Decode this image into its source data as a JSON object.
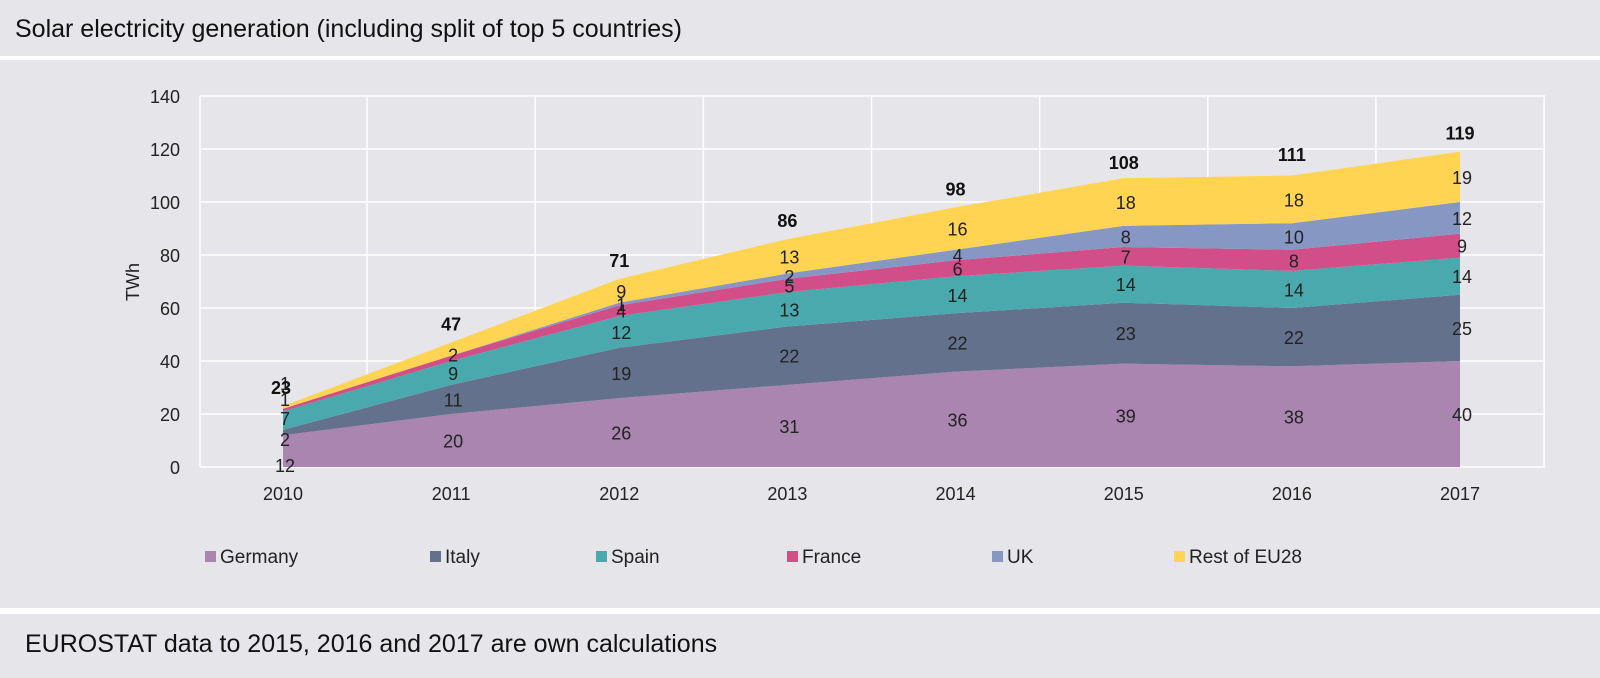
{
  "header": {
    "title": "Solar electricity generation (including split of top 5 countries)"
  },
  "footer": {
    "note": "EUROSTAT data to 2015, 2016 and 2017 are own calculations"
  },
  "chart_data": {
    "type": "area",
    "stacked": true,
    "x": [
      "2010",
      "2011",
      "2012",
      "2013",
      "2014",
      "2015",
      "2016",
      "2017"
    ],
    "ylabel": "TWh",
    "ylim": [
      0,
      140
    ],
    "yticks": [
      0,
      20,
      40,
      60,
      80,
      100,
      120,
      140
    ],
    "grid": true,
    "legend_position": "bottom",
    "series": [
      {
        "name": "Germany",
        "color": "#a985af",
        "values": [
          12,
          20,
          26,
          31,
          36,
          39,
          38,
          40
        ]
      },
      {
        "name": "Italy",
        "color": "#63718d",
        "values": [
          2,
          11,
          19,
          22,
          22,
          23,
          22,
          25
        ]
      },
      {
        "name": "Spain",
        "color": "#4aa9ad",
        "values": [
          7,
          9,
          12,
          13,
          14,
          14,
          14,
          14
        ]
      },
      {
        "name": "France",
        "color": "#d24e89",
        "values": [
          1,
          2,
          4,
          5,
          6,
          7,
          8,
          9
        ]
      },
      {
        "name": "UK",
        "color": "#8797c3",
        "values": [
          0,
          0,
          1,
          2,
          4,
          8,
          10,
          12
        ]
      },
      {
        "name": "Rest of EU28",
        "color": "#ffd452",
        "values": [
          1,
          5,
          9,
          13,
          16,
          18,
          18,
          19
        ]
      }
    ],
    "labels": [
      [
        "12",
        "20",
        "26",
        "31",
        "36",
        "39",
        "38",
        "40"
      ],
      [
        "2",
        "11",
        "19",
        "22",
        "22",
        "23",
        "22",
        "25"
      ],
      [
        "7",
        "9",
        "12",
        "13",
        "14",
        "14",
        "14",
        "14"
      ],
      [
        "1",
        "2",
        "4",
        "5",
        "6",
        "7",
        "8",
        "9"
      ],
      [
        "",
        "",
        "1",
        "2",
        "4",
        "8",
        "10",
        "12"
      ],
      [
        "1",
        "",
        "9",
        "13",
        "16",
        "18",
        "18",
        "19"
      ]
    ],
    "totals": [
      23,
      47,
      71,
      86,
      98,
      108,
      111,
      119
    ]
  }
}
